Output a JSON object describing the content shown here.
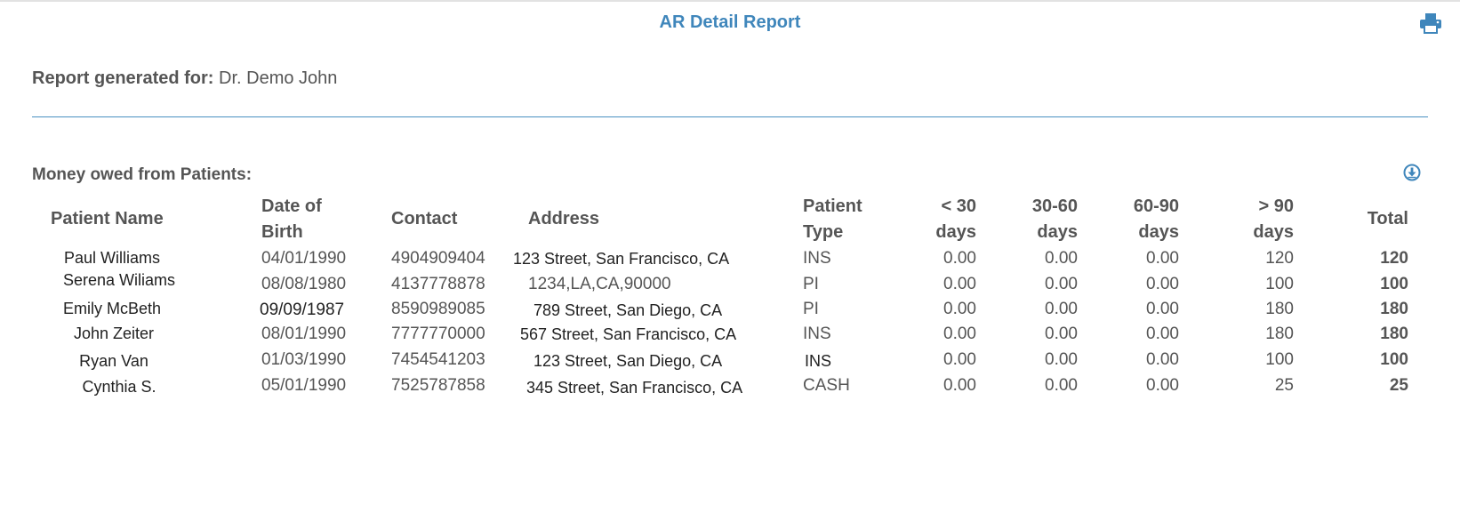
{
  "report": {
    "title": "AR Detail Report",
    "generated_label": "Report generated for:",
    "generated_for": "Dr. Demo John",
    "section_title": "Money owed from Patients:",
    "accent_color": "#3f86bb"
  },
  "icons": {
    "print": "printer-icon",
    "download": "download-circle-icon"
  },
  "table": {
    "headers": {
      "name": "Patient Name",
      "dob_1": "Date of",
      "dob_2": "Birth",
      "contact": "Contact",
      "address": "Address",
      "type_1": "Patient",
      "type_2": "Type",
      "lt30_1": "< 30",
      "lt30_2": "days",
      "d3060_1": "30-60",
      "d3060_2": "days",
      "d6090_1": "60-90",
      "d6090_2": "days",
      "gt90_1": "> 90",
      "gt90_2": "days",
      "total": "Total"
    },
    "rows": [
      {
        "name": "Paul Williams",
        "dob": "04/01/1990",
        "contact": "4904909404",
        "address": "123 Street, San Francisco, CA",
        "type": "INS",
        "lt30": "0.00",
        "d3060": "0.00",
        "d6090": "0.00",
        "gt90": "120",
        "total": "120"
      },
      {
        "name": "Serena Wiliams",
        "dob": "08/08/1980",
        "contact": "4137778878",
        "address": "1234,LA,CA,90000",
        "type": "PI",
        "lt30": "0.00",
        "d3060": "0.00",
        "d6090": "0.00",
        "gt90": "100",
        "total": "100"
      },
      {
        "name": "Emily McBeth",
        "dob": "09/09/1987",
        "contact": "8590989085",
        "address": "789 Street, San Diego, CA",
        "type": "PI",
        "lt30": "0.00",
        "d3060": "0.00",
        "d6090": "0.00",
        "gt90": "180",
        "total": "180"
      },
      {
        "name": "John Zeiter",
        "dob": "08/01/1990",
        "contact": "7777770000",
        "address": "567 Street, San Francisco, CA",
        "type": "INS",
        "lt30": "0.00",
        "d3060": "0.00",
        "d6090": "0.00",
        "gt90": "180",
        "total": "180"
      },
      {
        "name": "Ryan Van",
        "dob": "01/03/1990",
        "contact": "7454541203",
        "address": "123 Street, San Diego, CA",
        "type": "INS",
        "lt30": "0.00",
        "d3060": "0.00",
        "d6090": "0.00",
        "gt90": "100",
        "total": "100"
      },
      {
        "name": "Cynthia S.",
        "dob": "05/01/1990",
        "contact": "7525787858",
        "address": "345 Street, San Francisco, CA",
        "type": "CASH",
        "lt30": "0.00",
        "d3060": "0.00",
        "d6090": "0.00",
        "gt90": "25",
        "total": "25"
      }
    ]
  }
}
